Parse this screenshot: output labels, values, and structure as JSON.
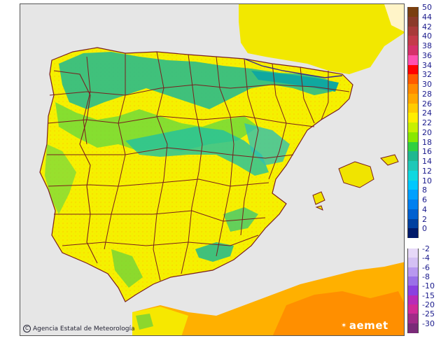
{
  "map": {
    "credit": "Agencia Estatal de Meteorología",
    "copyright_symbol": "C",
    "brand": "aemet",
    "brand_icon": "aemet-logo-icon",
    "sea_color": "#e6e6e6",
    "land_base_color": "#f6f000",
    "border_color": "#7a1f1f"
  },
  "legend": {
    "top_block": [
      {
        "label": "50",
        "color": "#7a3f10"
      },
      {
        "label": "44",
        "color": "#8b3a2a"
      },
      {
        "label": "42",
        "color": "#a83a3a"
      },
      {
        "label": "40",
        "color": "#c43a4a"
      },
      {
        "label": "38",
        "color": "#d6306a"
      },
      {
        "label": "36",
        "color": "#ff50b0"
      },
      {
        "label": "34",
        "color": "#ff0000"
      },
      {
        "label": "32",
        "color": "#ff5a00"
      },
      {
        "label": "30",
        "color": "#ff8a00"
      },
      {
        "label": "28",
        "color": "#ffa800"
      },
      {
        "label": "26",
        "color": "#ffcc00"
      },
      {
        "label": "24",
        "color": "#ffee00"
      },
      {
        "label": "22",
        "color": "#c8f000"
      },
      {
        "label": "20",
        "color": "#88e800"
      },
      {
        "label": "18",
        "color": "#30d040"
      },
      {
        "label": "16",
        "color": "#20b890"
      },
      {
        "label": "14",
        "color": "#20c8b8"
      },
      {
        "label": "12",
        "color": "#10d8e0"
      },
      {
        "label": "10",
        "color": "#00c8ff"
      },
      {
        "label": "8",
        "color": "#00a0ff"
      },
      {
        "label": "6",
        "color": "#0080f0"
      },
      {
        "label": "4",
        "color": "#0060d0"
      },
      {
        "label": "2",
        "color": "#0040a0"
      },
      {
        "label": "0",
        "color": "#001a6a"
      }
    ],
    "bottom_block": [
      {
        "label": "-2",
        "color": "#e6d8f8"
      },
      {
        "label": "-4",
        "color": "#d4c0f4"
      },
      {
        "label": "-6",
        "color": "#b898f0"
      },
      {
        "label": "-8",
        "color": "#9a70e8"
      },
      {
        "label": "-10",
        "color": "#8a40e0"
      },
      {
        "label": "-15",
        "color": "#b82ab8"
      },
      {
        "label": "-20",
        "color": "#d02a98"
      },
      {
        "label": "-25",
        "color": "#a02a88"
      },
      {
        "label": "-30",
        "color": "#7a2a78"
      }
    ]
  }
}
